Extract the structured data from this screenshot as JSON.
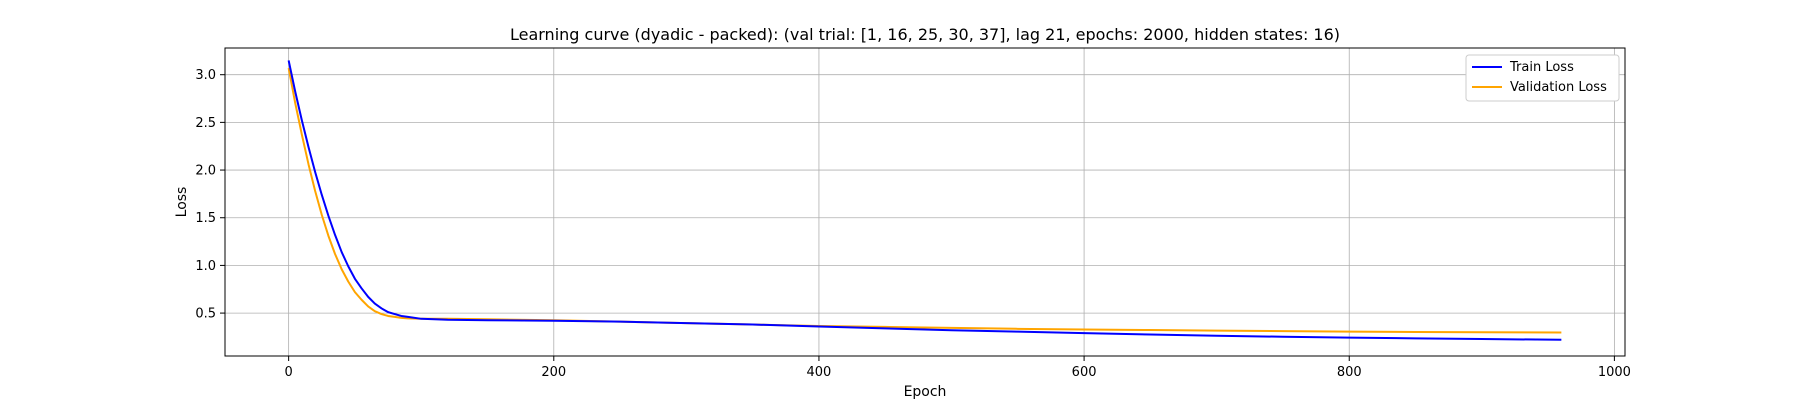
{
  "chart_data": {
    "type": "line",
    "title": "Learning curve (dyadic - packed): (val trial: [1, 16, 25, 30, 37], lag 21, epochs: 2000, hidden states: 16)",
    "xlabel": "Epoch",
    "ylabel": "Loss",
    "xlim": [
      -48,
      1008
    ],
    "ylim": [
      0.05,
      3.28
    ],
    "xticks": [
      0,
      200,
      400,
      600,
      800,
      1000
    ],
    "yticks": [
      0.5,
      1.0,
      1.5,
      2.0,
      2.5,
      3.0
    ],
    "xtick_labels": [
      "0",
      "200",
      "400",
      "600",
      "800",
      "1000"
    ],
    "ytick_labels": [
      "0.5",
      "1.0",
      "1.5",
      "2.0",
      "2.5",
      "3.0"
    ],
    "grid": true,
    "legend_position": "top-right",
    "series": [
      {
        "name": "Train Loss",
        "color": "#0000ff",
        "x": [
          0,
          5,
          10,
          15,
          20,
          25,
          30,
          35,
          40,
          45,
          50,
          55,
          60,
          65,
          70,
          75,
          80,
          85,
          90,
          100,
          110,
          120,
          150,
          200,
          250,
          300,
          350,
          400,
          450,
          500,
          550,
          600,
          650,
          700,
          750,
          800,
          850,
          900,
          960
        ],
        "y": [
          3.15,
          2.82,
          2.52,
          2.24,
          1.98,
          1.74,
          1.52,
          1.32,
          1.14,
          0.99,
          0.86,
          0.76,
          0.67,
          0.6,
          0.55,
          0.51,
          0.49,
          0.47,
          0.46,
          0.44,
          0.435,
          0.43,
          0.425,
          0.42,
          0.41,
          0.395,
          0.38,
          0.36,
          0.34,
          0.32,
          0.305,
          0.29,
          0.275,
          0.262,
          0.252,
          0.243,
          0.235,
          0.228,
          0.22
        ]
      },
      {
        "name": "Validation Loss",
        "color": "#ffa500",
        "x": [
          0,
          5,
          10,
          15,
          20,
          25,
          30,
          35,
          40,
          45,
          50,
          55,
          60,
          65,
          70,
          75,
          80,
          85,
          90,
          100,
          110,
          120,
          150,
          200,
          250,
          300,
          350,
          400,
          450,
          500,
          550,
          600,
          650,
          700,
          750,
          800,
          850,
          900,
          960
        ],
        "y": [
          3.07,
          2.7,
          2.37,
          2.06,
          1.78,
          1.53,
          1.31,
          1.12,
          0.96,
          0.83,
          0.72,
          0.64,
          0.57,
          0.52,
          0.49,
          0.47,
          0.46,
          0.45,
          0.445,
          0.44,
          0.44,
          0.44,
          0.435,
          0.425,
          0.41,
          0.395,
          0.38,
          0.365,
          0.355,
          0.345,
          0.335,
          0.328,
          0.322,
          0.316,
          0.311,
          0.306,
          0.302,
          0.299,
          0.297
        ]
      }
    ]
  }
}
